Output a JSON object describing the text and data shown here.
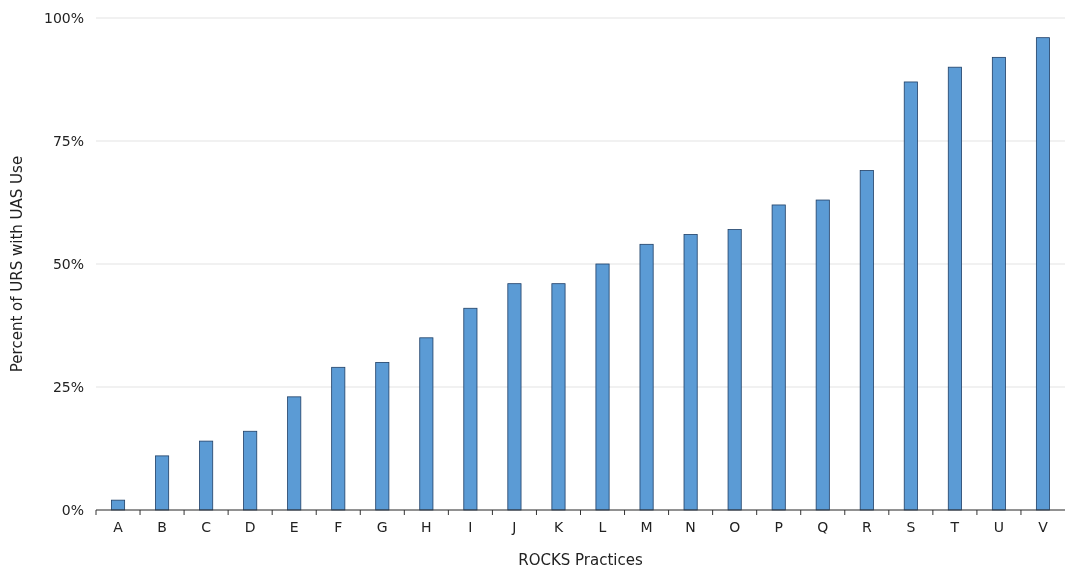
{
  "chart_data": {
    "type": "bar",
    "xlabel": "ROCKS Practices",
    "ylabel": "Percent of URS with UAS Use",
    "categories": [
      "A",
      "B",
      "C",
      "D",
      "E",
      "F",
      "G",
      "H",
      "I",
      "J",
      "K",
      "L",
      "M",
      "N",
      "O",
      "P",
      "Q",
      "R",
      "S",
      "T",
      "U",
      "V"
    ],
    "values": [
      2,
      11,
      14,
      16,
      23,
      29,
      30,
      35,
      41,
      46,
      46,
      50,
      54,
      56,
      57,
      62,
      63,
      69,
      87,
      90,
      92,
      96
    ],
    "color": "#5b9bd5",
    "ylim": [
      0,
      100
    ],
    "yticks": [
      {
        "value": 0,
        "label": "0%"
      },
      {
        "value": 25,
        "label": "25%"
      },
      {
        "value": 50,
        "label": "50%"
      },
      {
        "value": 75,
        "label": "75%"
      },
      {
        "value": 100,
        "label": "100%"
      }
    ],
    "grid": "y"
  }
}
